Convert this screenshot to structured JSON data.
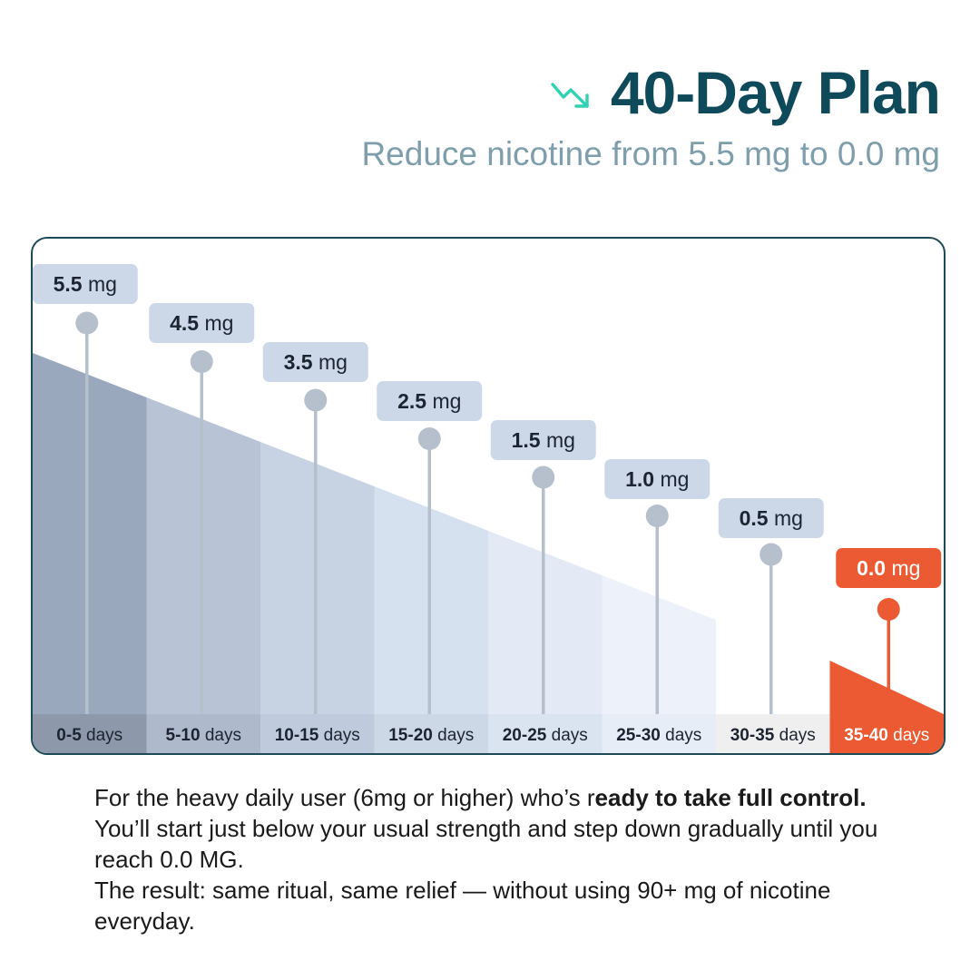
{
  "header": {
    "title": "40-Day Plan",
    "subtitle": "Reduce nicotine from 5.5 mg to 0.0 mg",
    "icon": "trending-down-icon",
    "accent_color": "#2fd3b4",
    "title_color": "#0f4a5a"
  },
  "chart_data": {
    "type": "bar",
    "title": "",
    "xlabel": "",
    "ylabel": "",
    "categories": [
      "0-5 days",
      "5-10 days",
      "10-15 days",
      "15-20 days",
      "20-25 days",
      "25-30 days",
      "30-35 days",
      "35-40 days"
    ],
    "values": [
      5.5,
      4.5,
      3.5,
      2.5,
      1.5,
      1.0,
      0.5,
      0.0
    ],
    "value_labels": [
      {
        "num": "5.5",
        "unit": "mg"
      },
      {
        "num": "4.5",
        "unit": "mg"
      },
      {
        "num": "3.5",
        "unit": "mg"
      },
      {
        "num": "2.5",
        "unit": "mg"
      },
      {
        "num": "1.5",
        "unit": "mg"
      },
      {
        "num": "1.0",
        "unit": "mg"
      },
      {
        "num": "0.5",
        "unit": "mg"
      },
      {
        "num": "0.0",
        "unit": "mg"
      }
    ],
    "category_labels": [
      {
        "num": "0-5",
        "unit": "days"
      },
      {
        "num": "5-10",
        "unit": "days"
      },
      {
        "num": "10-15",
        "unit": "days"
      },
      {
        "num": "15-20",
        "unit": "days"
      },
      {
        "num": "20-25",
        "unit": "days"
      },
      {
        "num": "25-30",
        "unit": "days"
      },
      {
        "num": "30-35",
        "unit": "days"
      },
      {
        "num": "35-40",
        "unit": "days"
      }
    ],
    "ylim": [
      0,
      5.5
    ],
    "grid": false,
    "highlight_index": 7,
    "highlight_color": "#ec5a33",
    "colors": {
      "segments": [
        "#9aa8bd",
        "#b8c4d5",
        "#c7d3e3",
        "#d6e1ef",
        "#e3eaf5",
        "#edf2fa",
        "#ffffff",
        "#ec5a33"
      ],
      "labels": [
        "#8d99aa",
        "#aeb9cb",
        "#bfcbdc",
        "#cdd8e7",
        "#dae3f0",
        "#e6edf7",
        "#efefef",
        "#ec5a33"
      ],
      "pins": [
        "#b6bfcc",
        "#b6bfcc",
        "#b6bfcc",
        "#b6bfcc",
        "#b6bfcc",
        "#b6bfcc",
        "#b6bfcc",
        "#ec5a33"
      ],
      "badges": [
        "#ccd8e8",
        "#ccd8e8",
        "#ccd8e8",
        "#ccd8e8",
        "#ccd8e8",
        "#ccd8e8",
        "#ccd8e8",
        "#ec5a33"
      ]
    }
  },
  "description": {
    "p1_lead": "For the heavy daily user (6mg or higher) who’s r",
    "p1_bold": "eady to take full control.",
    "p1_tail": " You’ll start just below your usual strength and step down gradually until you reach 0.0 MG.",
    "p2": "The result: same ritual, same relief — without using 90+ mg of nicotine everyday."
  }
}
